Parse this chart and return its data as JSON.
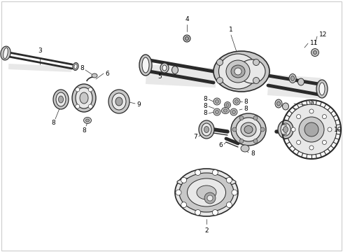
{
  "background_color": "#ffffff",
  "figsize": [
    4.9,
    3.6
  ],
  "dpi": 100,
  "line_color": "#2a2a2a",
  "label_fontsize": 6.5,
  "label_color": "#000000",
  "border_color": "#cccccc"
}
